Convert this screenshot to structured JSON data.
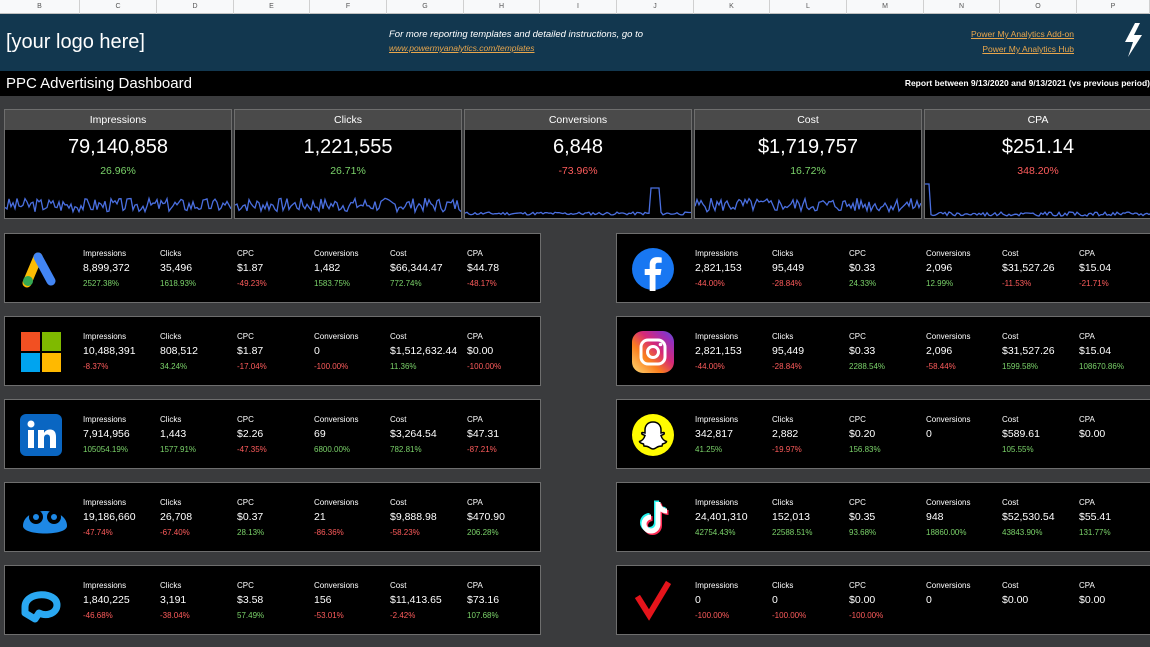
{
  "column_headers": [
    "B",
    "C",
    "D",
    "E",
    "F",
    "G",
    "H",
    "I",
    "J",
    "K",
    "L",
    "M",
    "N",
    "O",
    "P"
  ],
  "banner": {
    "logo_text": "[your logo here]",
    "info_line1": "For more reporting templates and detailed instructions, go to",
    "info_line2": "www.powermyanalytics.com/templates",
    "link_addon": "Power My Analytics Add-on",
    "link_hub": "Power My Analytics Hub",
    "bolt_icon": "lightning-bolt-icon"
  },
  "title_bar": {
    "title": "PPC Advertising Dashboard",
    "report_range": "Report between 9/13/2020 and 9/13/2021 (vs previous period)"
  },
  "kpis": [
    {
      "label": "Impressions",
      "value": "79,140,858",
      "change": "26.96%",
      "positive": true
    },
    {
      "label": "Clicks",
      "value": "1,221,555",
      "change": "26.71%",
      "positive": true
    },
    {
      "label": "Conversions",
      "value": "6,848",
      "change": "-73.96%",
      "positive": false
    },
    {
      "label": "Cost",
      "value": "$1,719,757",
      "change": "16.72%",
      "positive": true
    },
    {
      "label": "CPA",
      "value": "$251.14",
      "change": "348.20%",
      "positive": false
    }
  ],
  "metric_labels": [
    "Impressions",
    "Clicks",
    "CPC",
    "Conversions",
    "Cost",
    "CPA"
  ],
  "platforms": [
    {
      "icon": "google-ads-icon",
      "values": [
        "8,899,372",
        "35,496",
        "$1.87",
        "1,482",
        "$66,344.47",
        "$44.78"
      ],
      "changes": [
        "2527.38%",
        "1618.93%",
        "-49.23%",
        "1583.75%",
        "772.74%",
        "-48.17%"
      ]
    },
    {
      "icon": "microsoft-icon",
      "values": [
        "10,488,391",
        "808,512",
        "$1.87",
        "0",
        "$1,512,632.44",
        "$0.00"
      ],
      "changes": [
        "-8.37%",
        "34.24%",
        "-17.04%",
        "-100.00%",
        "11.36%",
        "-100.00%"
      ]
    },
    {
      "icon": "linkedin-icon",
      "values": [
        "7,914,956",
        "1,443",
        "$2.26",
        "69",
        "$3,264.54",
        "$47.31"
      ],
      "changes": [
        "105054.19%",
        "1577.91%",
        "-47.35%",
        "6800.00%",
        "782.81%",
        "-87.21%"
      ]
    },
    {
      "icon": "quora-ads-icon",
      "values": [
        "19,186,660",
        "26,708",
        "$0.37",
        "21",
        "$9,888.98",
        "$470.90"
      ],
      "changes": [
        "-47.74%",
        "-67.40%",
        "28.13%",
        "-86.36%",
        "-58.23%",
        "206.28%"
      ]
    },
    {
      "icon": "adroll-icon",
      "values": [
        "1,840,225",
        "3,191",
        "$3.58",
        "156",
        "$11,413.65",
        "$73.16"
      ],
      "changes": [
        "-46.68%",
        "-38.04%",
        "57.49%",
        "-53.01%",
        "-2.42%",
        "107.68%"
      ]
    },
    {
      "icon": "facebook-icon",
      "values": [
        "2,821,153",
        "95,449",
        "$0.33",
        "2,096",
        "$31,527.26",
        "$15.04"
      ],
      "changes": [
        "-44.00%",
        "-28.84%",
        "24.33%",
        "12.99%",
        "-11.53%",
        "-21.71%"
      ]
    },
    {
      "icon": "instagram-icon",
      "values": [
        "2,821,153",
        "95,449",
        "$0.33",
        "2,096",
        "$31,527.26",
        "$15.04"
      ],
      "changes": [
        "-44.00%",
        "-28.84%",
        "2288.54%",
        "-58.44%",
        "1599.58%",
        "108670.86%"
      ]
    },
    {
      "icon": "snapchat-icon",
      "values": [
        "342,817",
        "2,882",
        "$0.20",
        "0",
        "$589.61",
        "$0.00"
      ],
      "changes": [
        "41.25%",
        "-19.97%",
        "156.83%",
        "",
        "105.55%",
        ""
      ]
    },
    {
      "icon": "tiktok-icon",
      "values": [
        "24,401,310",
        "152,013",
        "$0.35",
        "948",
        "$52,530.54",
        "$55.41"
      ],
      "changes": [
        "42754.43%",
        "22588.51%",
        "93.68%",
        "18860.00%",
        "43843.90%",
        "131.77%"
      ]
    },
    {
      "icon": "verizon-media-icon",
      "values": [
        "0",
        "0",
        "$0.00",
        "0",
        "$0.00",
        "$0.00"
      ],
      "changes": [
        "-100.00%",
        "-100.00%",
        "-100.00%",
        "",
        "",
        ""
      ]
    }
  ],
  "colors": {
    "positive": "#7bd36a",
    "negative": "#ff5c5c",
    "sparkline": "#4a6fe0",
    "banner": "#12374f",
    "link": "#e8a64c"
  }
}
